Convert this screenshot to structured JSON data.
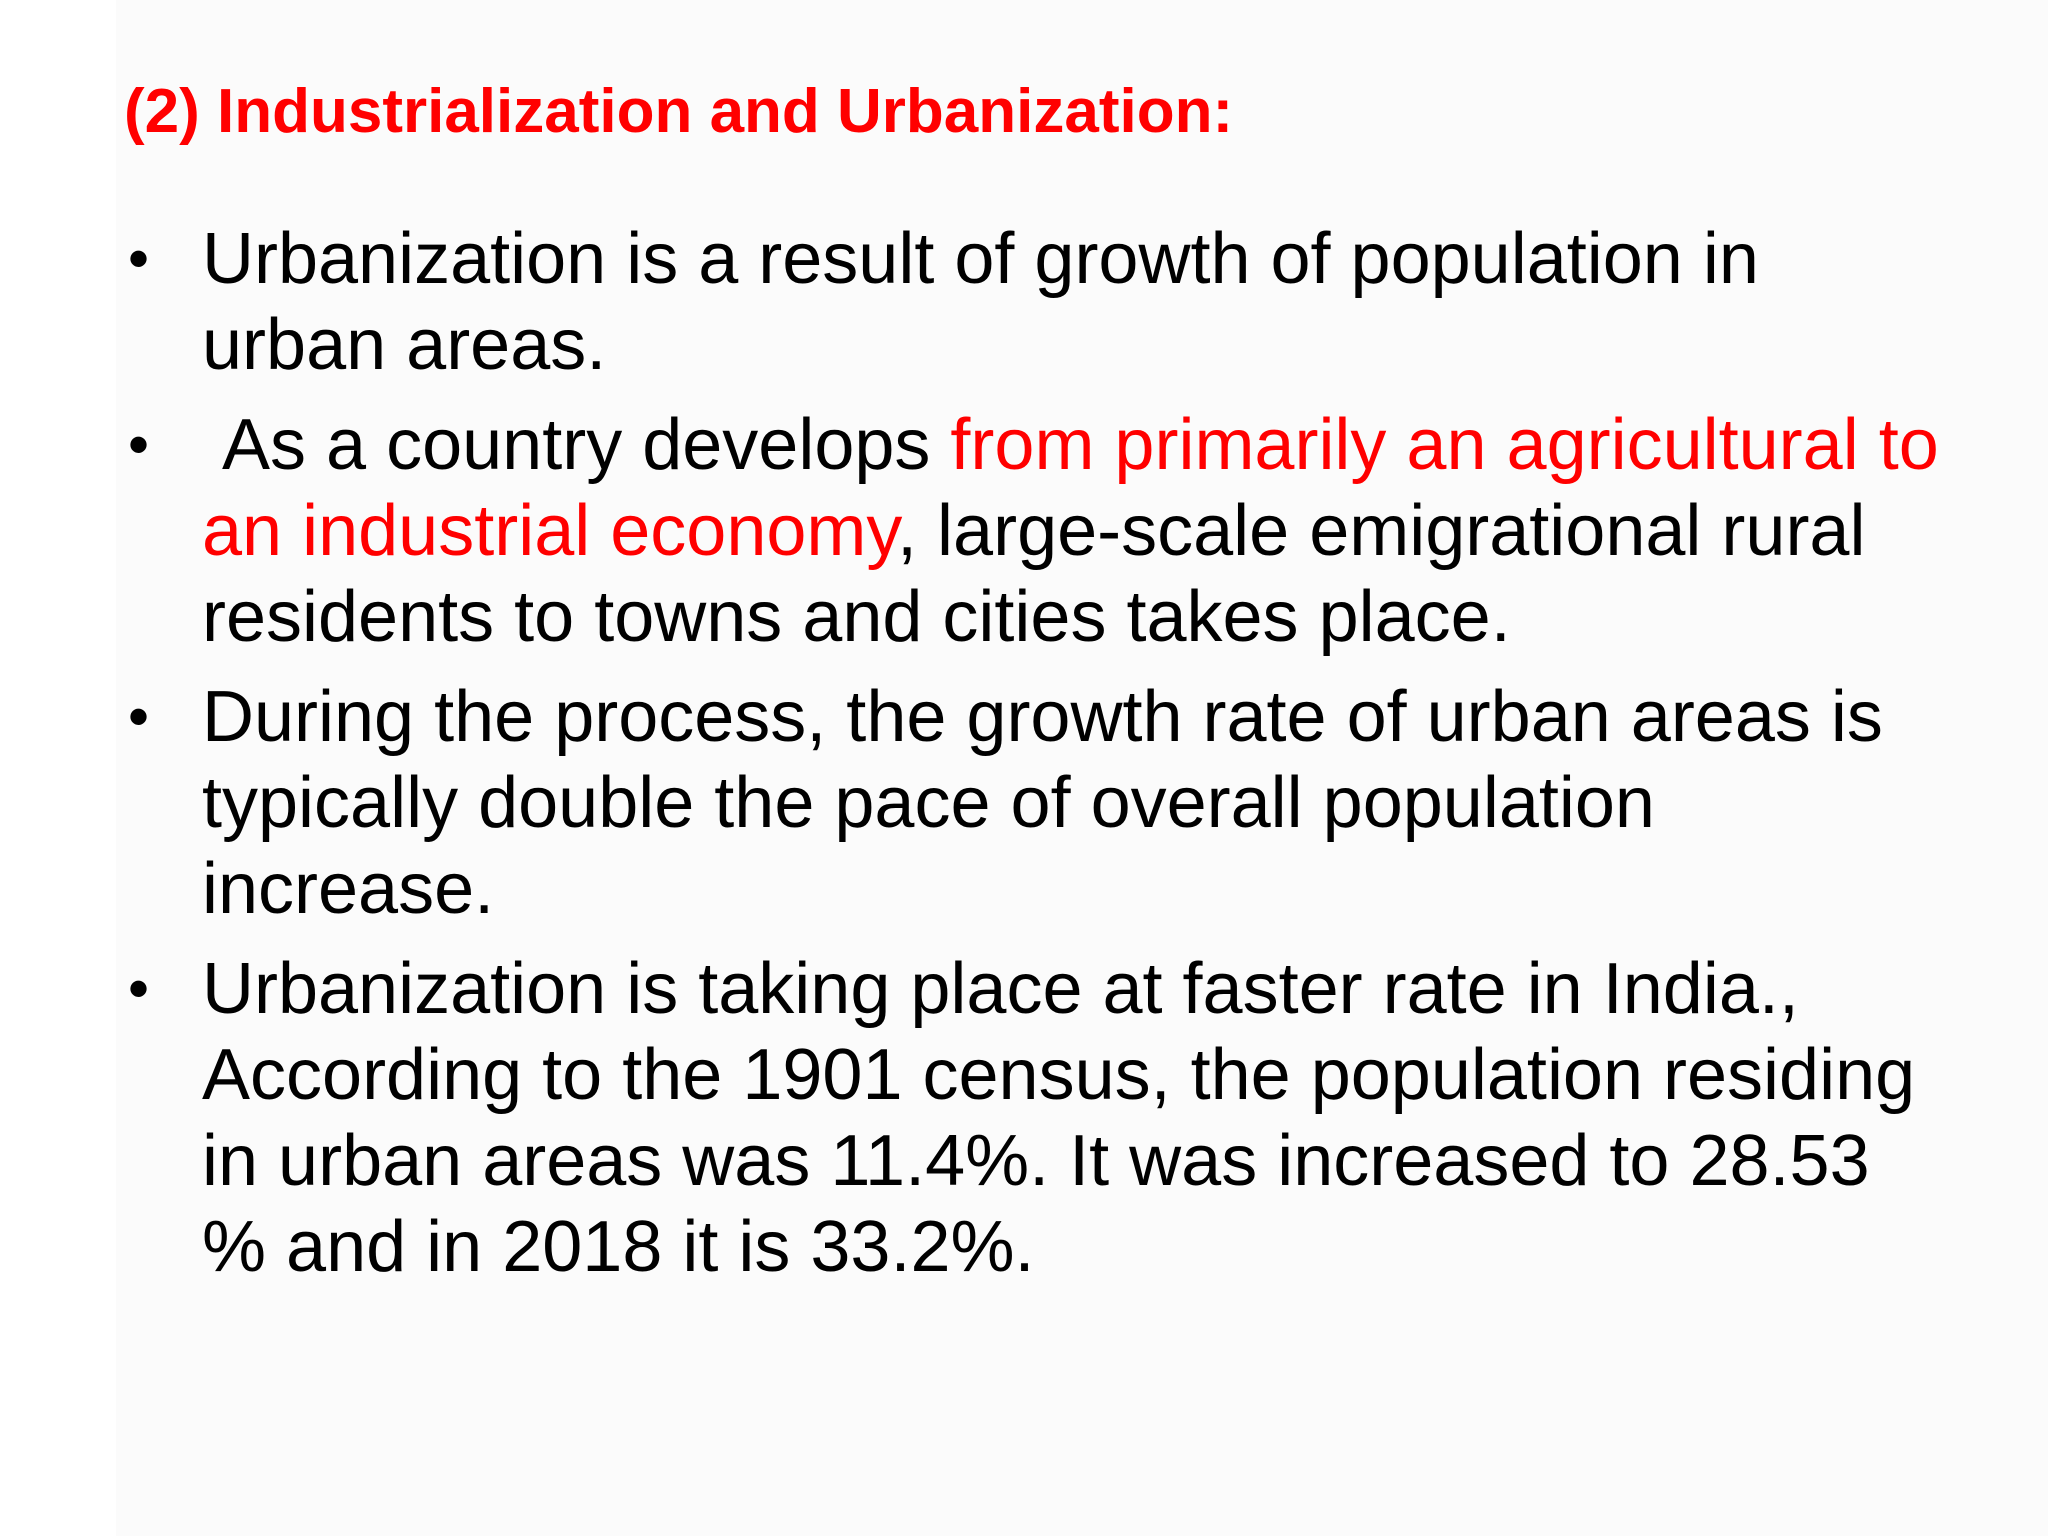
{
  "slide": {
    "title": "(2) Industrialization and Urbanization:",
    "bullet_glyph": "•",
    "bullets": [
      {
        "text": "Urbanization is a result of growth of population in urban areas."
      },
      {
        "before": " As a country develops ",
        "highlight": "from primarily an agricultural to an industrial economy",
        "after": ", large-scale emigrational rural residents to towns and cities takes place."
      },
      {
        "text": "During the process, the growth rate of urban areas is typically double the pace of overall population increase."
      },
      {
        "text": "Urbanization is taking place at faster rate in India., According to the 1901 census, the population residing in urban areas was 11.4%. It was increased to 28.53 % and in 2018 it is 33.2%."
      }
    ],
    "colors": {
      "title": "#ff0000",
      "highlight": "#ff0000",
      "body_text": "#000000",
      "background": "#fbfbfb"
    }
  }
}
